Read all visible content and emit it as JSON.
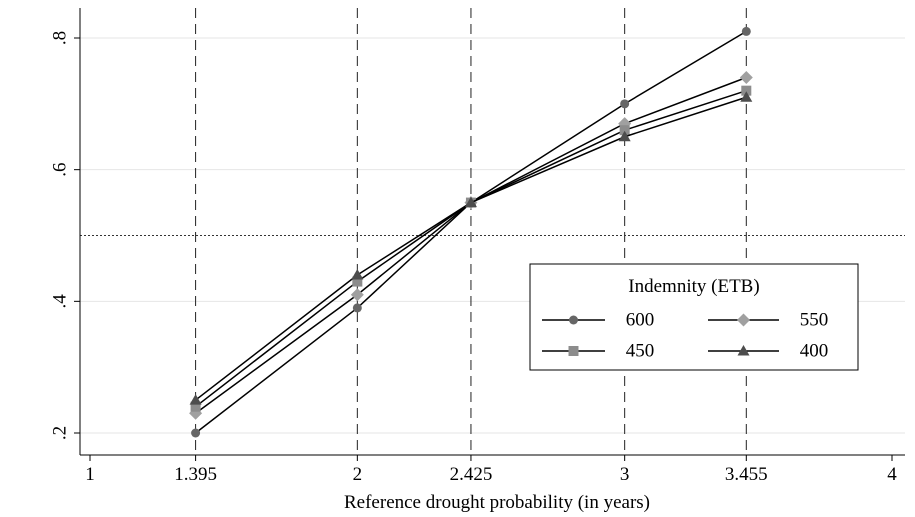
{
  "chart_data": {
    "type": "line",
    "title": "",
    "xlabel": "Reference drought probability (in years)",
    "ylabel": "",
    "x": [
      1.395,
      2,
      2.425,
      3,
      3.455
    ],
    "xticks": [
      1,
      1.395,
      2,
      2.425,
      3,
      3.455,
      4
    ],
    "xtick_labels": [
      "1",
      "1.395",
      "2",
      "2.425",
      "3",
      "3.455",
      "4"
    ],
    "yticks": [
      0.2,
      0.4,
      0.6,
      0.8
    ],
    "ytick_labels": [
      ".2",
      ".4",
      ".6",
      ".8"
    ],
    "xlim": [
      1,
      4
    ],
    "ylim": [
      0.2,
      0.8
    ],
    "vlines": [
      1.395,
      2,
      2.425,
      3,
      3.455
    ],
    "hline": 0.5,
    "grid": true,
    "legend": {
      "title": "Indemnity (ETB)",
      "position": "right"
    },
    "series": [
      {
        "name": "600",
        "marker": "circle",
        "color": "#666666",
        "values": [
          0.2,
          0.39,
          0.55,
          0.7,
          0.81
        ]
      },
      {
        "name": "550",
        "marker": "diamond",
        "color": "#a0a0a0",
        "values": [
          0.23,
          0.41,
          0.55,
          0.67,
          0.74
        ]
      },
      {
        "name": "450",
        "marker": "square",
        "color": "#8c8c8c",
        "values": [
          0.24,
          0.43,
          0.55,
          0.66,
          0.72
        ]
      },
      {
        "name": "400",
        "marker": "triangle",
        "color": "#4d4d4d",
        "values": [
          0.25,
          0.44,
          0.55,
          0.65,
          0.71
        ]
      }
    ]
  }
}
